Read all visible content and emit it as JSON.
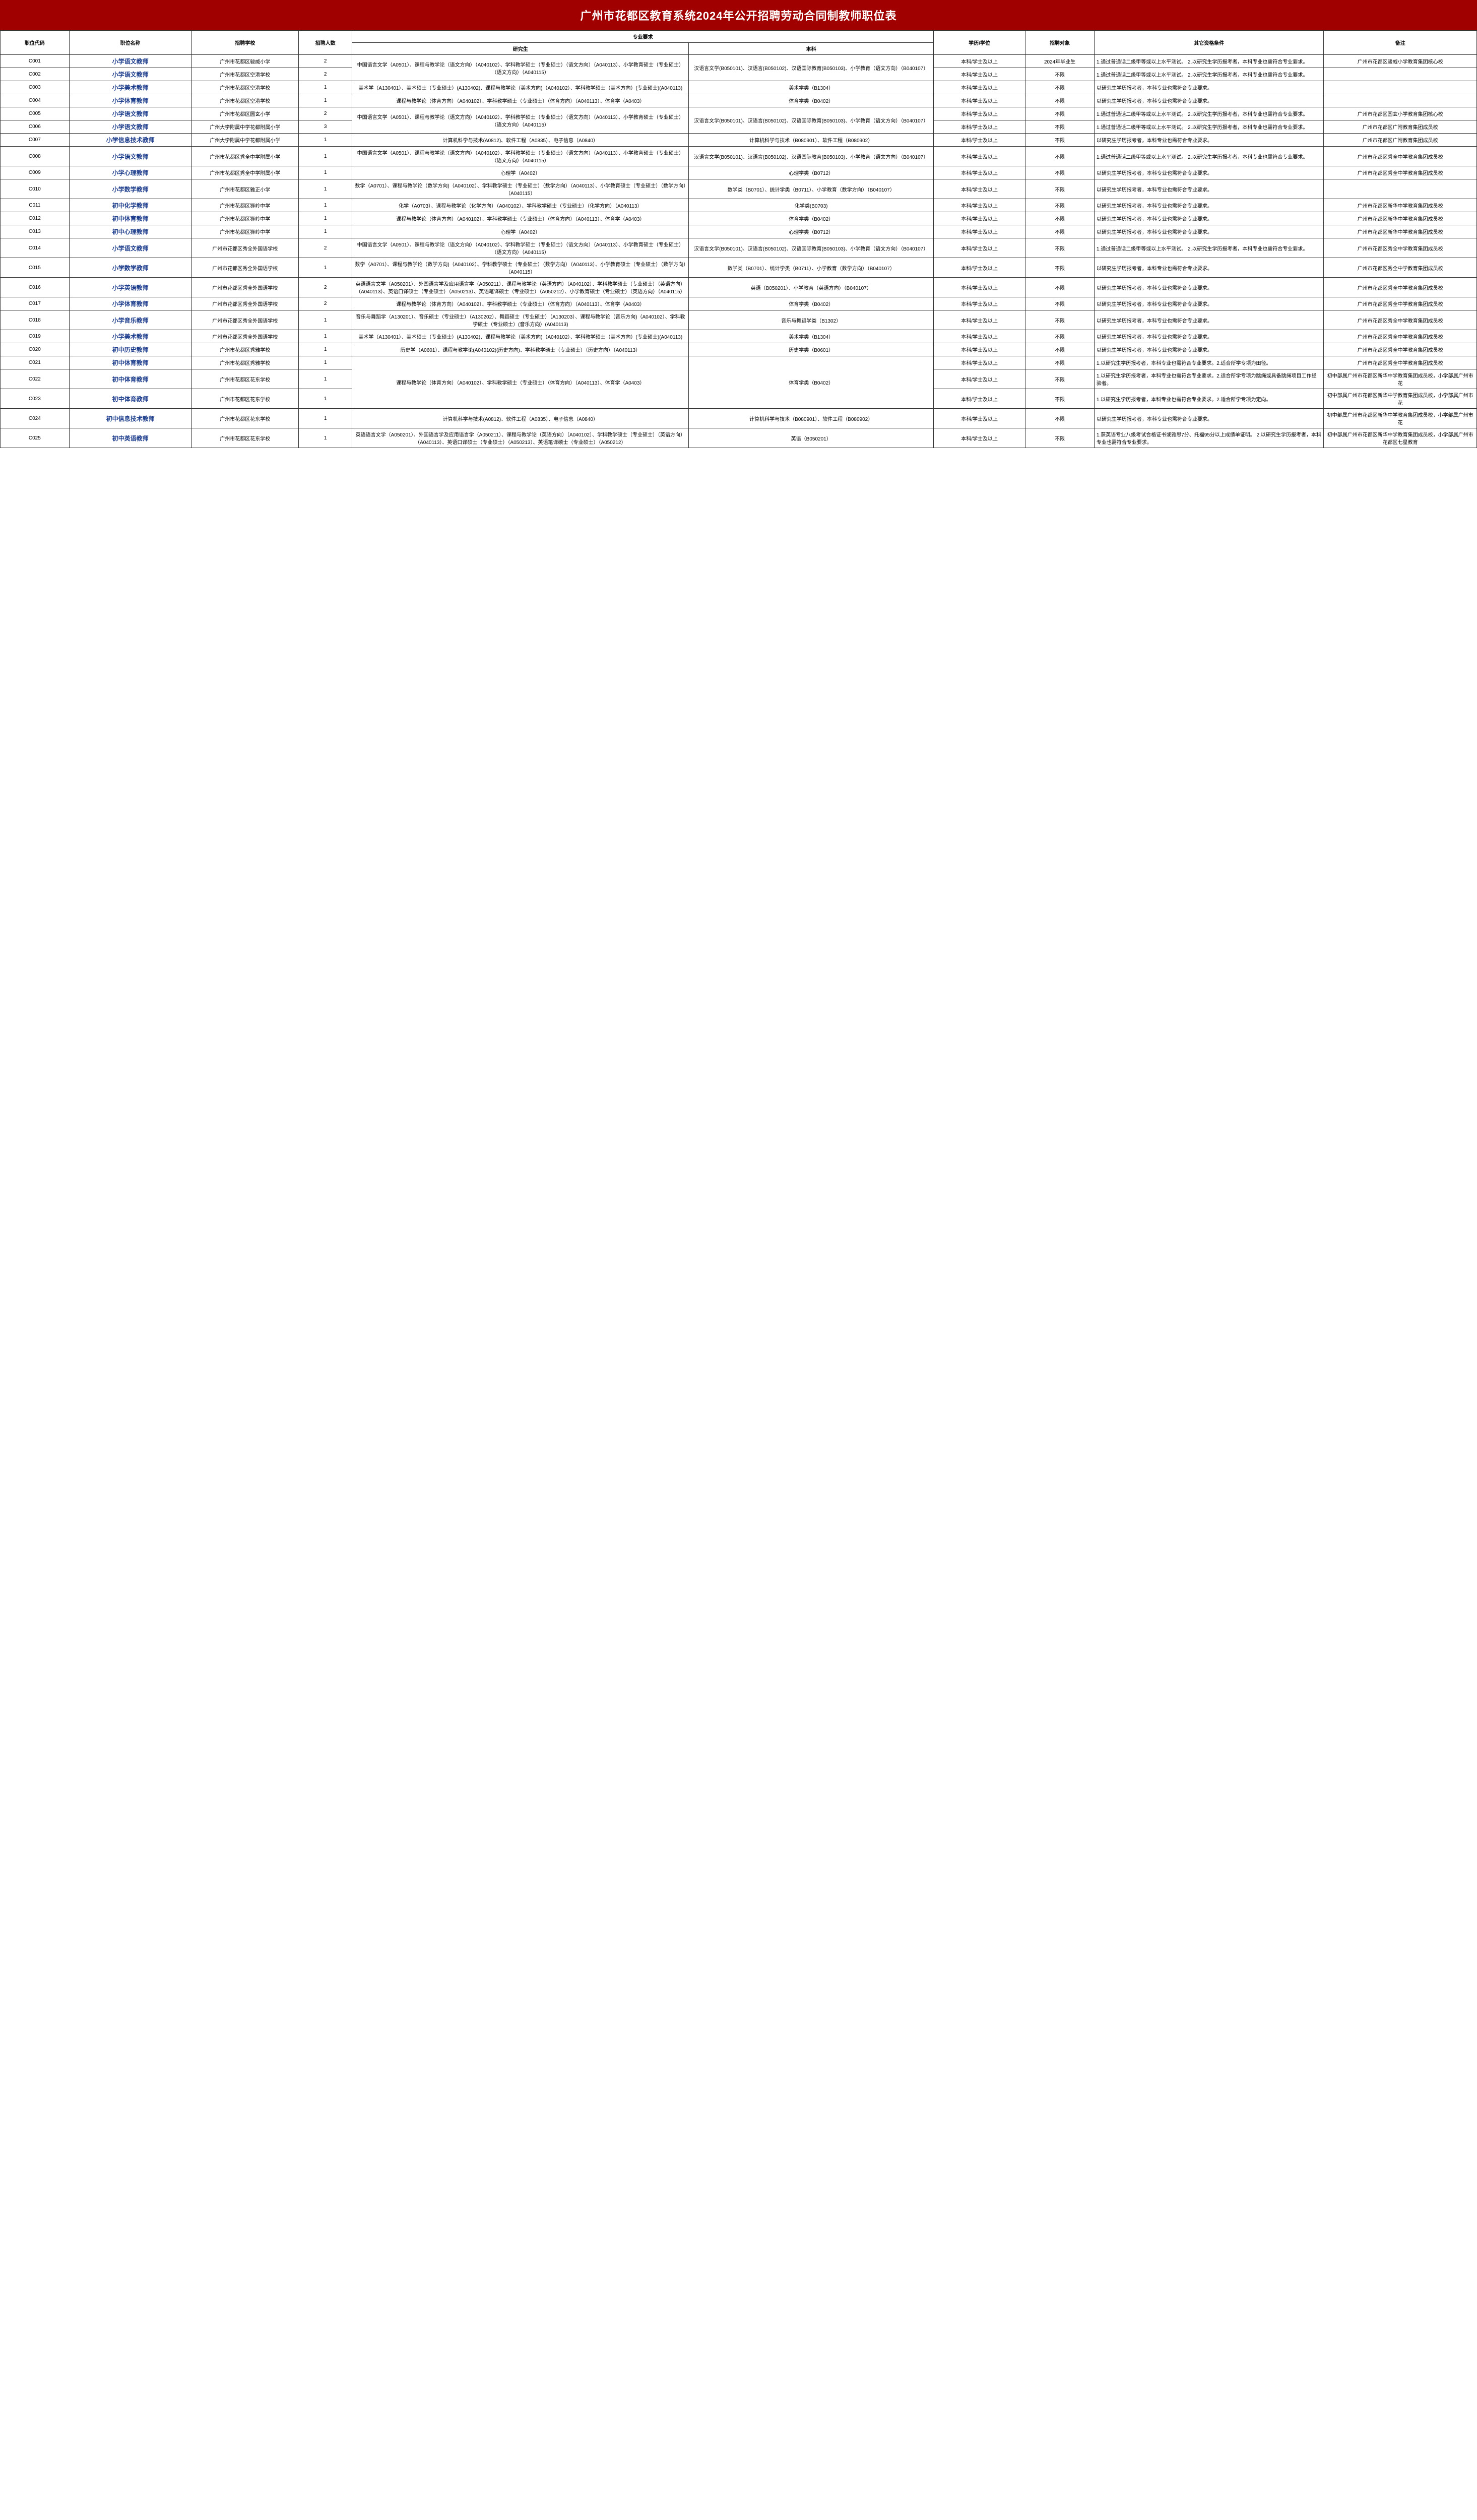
{
  "title": "广州市花都区教育系统2024年公开招聘劳动合同制教师职位表",
  "colors": {
    "title_bg": "#a00000",
    "title_fg": "#ffffff",
    "border": "#333333",
    "position_link": "#1a3a8a"
  },
  "headers": {
    "code": "职位代码",
    "name": "职位名称",
    "school": "招聘学校",
    "count": "招聘人数",
    "major_group": "专业要求",
    "grad": "研究生",
    "undergrad": "本科",
    "degree": "学历/学位",
    "target": "招聘对象",
    "other": "其它资格条件",
    "remark": "备注"
  },
  "shared": {
    "chinese_grad": "中国语言文学（A0501）、课程与教学论（语文方向）（A040102）、学科教学硕士（专业硕士）（语文方向）（A040113）、小学教育硕士（专业硕士）（语文方向）（A040115）",
    "chinese_under": "汉语言文学(B050101)、汉语言(B050102)、汉语国际教育(B050103)、小学教育（语文方向）（B040107）",
    "pe_grad": "课程与教学论（体育方向）（A040102）、学科教学硕士（专业硕士）（体育方向）（A040113）、体育学（A0403）",
    "pe_under": "体育学类（B0402）",
    "it_grad": "计算机科学与技术(A0812)、软件工程（A0835）、电子信息（A0840）",
    "it_under": "计算机科学与技术（B080901）、软件工程（B080902）",
    "math_grad": "数学（A0701）、课程与教学论（数学方向)（A040102）、学科教学硕士（专业硕士）（数学方向）（A040113）、小学教育硕士（专业硕士）（数学方向）（A040115）",
    "math_under": "数学类（B0701）、统计学类（B0711）、小学教育（数学方向）（B040107）",
    "art_grad": "美术学（A130401）、美术硕士（专业硕士）(A130402)、课程与教学论（美术方向)（A040102）、学科教学硕士（美术方向）(专业硕士)(A040113)",
    "art_under": "美术学类（B1304）",
    "psych_grad": "心理学（A0402）",
    "psych_under": "心理学类（B0712）",
    "q_chinese": "1.通过普通话二级甲等或以上水平测试。\n2.以研究生学历报考者，本科专业也需符合专业要求。",
    "q_grad": "以研究生学历报考者，本科专业也需符合专业要求。",
    "deg": "本科/学士及以上",
    "any": "不限"
  },
  "rows": [
    {
      "code": "C001",
      "name": "小学语文教师",
      "school": "广州市花都区骏威小学",
      "count": "2",
      "grad": "@chinese_grad",
      "under": "@chinese_under",
      "degree": "@deg",
      "target": "2024年毕业生",
      "other": "@q_chinese",
      "remark": "广州市花都区骏威小学教育集团核心校",
      "grad_span": 2,
      "under_span": 2
    },
    {
      "code": "C002",
      "name": "小学语文教师",
      "school": "广州市花都区空港学校",
      "count": "2",
      "degree": "@deg",
      "target": "@any",
      "other": "@q_chinese",
      "remark": ""
    },
    {
      "code": "C003",
      "name": "小学美术教师",
      "school": "广州市花都区空港学校",
      "count": "1",
      "grad": "@art_grad",
      "under": "@art_under",
      "degree": "@deg",
      "target": "@any",
      "other": "@q_grad",
      "remark": ""
    },
    {
      "code": "C004",
      "name": "小学体育教师",
      "school": "广州市花都区空港学校",
      "count": "1",
      "grad": "@pe_grad",
      "under": "@pe_under",
      "degree": "@deg",
      "target": "@any",
      "other": "@q_grad",
      "remark": ""
    },
    {
      "code": "C005",
      "name": "小学语文教师",
      "school": "广州市花都区圆玄小学",
      "count": "2",
      "grad": "@chinese_grad",
      "under": "@chinese_under",
      "degree": "@deg",
      "target": "@any",
      "other": "@q_chinese",
      "remark": "广州市花都区圆玄小学教育集团核心校",
      "grad_span": 2,
      "under_span": 2
    },
    {
      "code": "C006",
      "name": "小学语文教师",
      "school": "广州大学附属中学花都附属小学",
      "count": "3",
      "degree": "@deg",
      "target": "@any",
      "other": "@q_chinese",
      "remark": "广州市花都区广附教育集团成员校"
    },
    {
      "code": "C007",
      "name": "小学信息技术教师",
      "school": "广州大学附属中学花都附属小学",
      "count": "1",
      "grad": "@it_grad",
      "under": "@it_under",
      "degree": "@deg",
      "target": "@any",
      "other": "@q_grad",
      "remark": "广州市花都区广附教育集团成员校"
    },
    {
      "code": "C008",
      "name": "小学语文教师",
      "school": "广州市花都区秀全中学附属小学",
      "count": "1",
      "grad": "@chinese_grad",
      "under": "@chinese_under",
      "degree": "@deg",
      "target": "@any",
      "other": "@q_chinese",
      "remark": "广州市花都区秀全中学教育集团成员校"
    },
    {
      "code": "C009",
      "name": "小学心理教师",
      "school": "广州市花都区秀全中学附属小学",
      "count": "1",
      "grad": "@psych_grad",
      "under": "@psych_under",
      "degree": "@deg",
      "target": "@any",
      "other": "@q_grad",
      "remark": "广州市花都区秀全中学教育集团成员校"
    },
    {
      "code": "C010",
      "name": "小学数学教师",
      "school": "广州市花都区雅正小学",
      "count": "1",
      "grad": "@math_grad",
      "under": "@math_under",
      "degree": "@deg",
      "target": "@any",
      "other": "@q_grad",
      "remark": ""
    },
    {
      "code": "C011",
      "name": "初中化学教师",
      "school": "广州市花都区狮岭中学",
      "count": "1",
      "grad": "化学（A0703）、课程与教学论（化学方向）（A040102）、学科教学硕士（专业硕士）（化学方向）（A040113）",
      "under": "化学类(B0703)",
      "degree": "@deg",
      "target": "@any",
      "other": "@q_grad",
      "remark": "广州市花都区新华中学教育集团成员校"
    },
    {
      "code": "C012",
      "name": "初中体育教师",
      "school": "广州市花都区狮岭中学",
      "count": "1",
      "grad": "@pe_grad",
      "under": "@pe_under",
      "degree": "@deg",
      "target": "@any",
      "other": "@q_grad",
      "remark": "广州市花都区新华中学教育集团成员校"
    },
    {
      "code": "C013",
      "name": "初中心理教师",
      "school": "广州市花都区狮岭中学",
      "count": "1",
      "grad": "@psych_grad",
      "under": "@psych_under",
      "degree": "@deg",
      "target": "@any",
      "other": "@q_grad",
      "remark": "广州市花都区新华中学教育集团成员校"
    },
    {
      "code": "C014",
      "name": "小学语文教师",
      "school": "广州市花都区秀全外国语学校",
      "count": "2",
      "grad": "@chinese_grad",
      "under": "@chinese_under",
      "degree": "@deg",
      "target": "@any",
      "other": "@q_chinese",
      "remark": "广州市花都区秀全中学教育集团成员校"
    },
    {
      "code": "C015",
      "name": "小学数学教师",
      "school": "广州市花都区秀全外国语学校",
      "count": "1",
      "grad": "@math_grad",
      "under": "@math_under",
      "degree": "@deg",
      "target": "@any",
      "other": "@q_grad",
      "remark": "广州市花都区秀全中学教育集团成员校"
    },
    {
      "code": "C016",
      "name": "小学英语教师",
      "school": "广州市花都区秀全外国语学校",
      "count": "2",
      "grad": "英语语言文学（A050201）、外国语言学及应用语言学（A050211）、课程与教学论（英语方向）（A040102）、学科教学硕士（专业硕士）（英语方向）（A040113）、英语口译硕士（专业硕士）（A050213）、英语笔译硕士（专业硕士）（A050212）、小学教育硕士（专业硕士）（英语方向）（A040115）",
      "under": "英语（B050201）、小学教育（英语方向）（B040107）",
      "degree": "@deg",
      "target": "@any",
      "other": "@q_grad",
      "remark": "广州市花都区秀全中学教育集团成员校"
    },
    {
      "code": "C017",
      "name": "小学体育教师",
      "school": "广州市花都区秀全外国语学校",
      "count": "2",
      "grad": "@pe_grad",
      "under": "@pe_under",
      "degree": "@deg",
      "target": "@any",
      "other": "@q_grad",
      "remark": "广州市花都区秀全中学教育集团成员校"
    },
    {
      "code": "C018",
      "name": "小学音乐教师",
      "school": "广州市花都区秀全外国语学校",
      "count": "1",
      "grad": "音乐与舞蹈学（A130201）、音乐硕士（专业硕士）（A130202）、舞蹈硕士（专业硕士）（A130203）、课程与教学论（音乐方向)（A040102）、学科教学硕士（专业硕士）(音乐方向）(A040113)",
      "under": "音乐与舞蹈学类（B1302）",
      "degree": "@deg",
      "target": "@any",
      "other": "@q_grad",
      "remark": "广州市花都区秀全中学教育集团成员校"
    },
    {
      "code": "C019",
      "name": "小学美术教师",
      "school": "广州市花都区秀全外国语学校",
      "count": "1",
      "grad": "@art_grad",
      "under": "@art_under",
      "degree": "@deg",
      "target": "@any",
      "other": "@q_grad",
      "remark": "广州市花都区秀全中学教育集团成员校"
    },
    {
      "code": "C020",
      "name": "初中历史教师",
      "school": "广州市花都区秀雅学校",
      "count": "1",
      "grad": "历史学（A0601）、课程与教学论(A040102)(历史方向)、学科教学硕士（专业硕士）（历史方向）（A040113）",
      "under": "历史学类（B0601）",
      "degree": "@deg",
      "target": "@any",
      "other": "@q_grad",
      "remark": "广州市花都区秀全中学教育集团成员校"
    },
    {
      "code": "C021",
      "name": "初中体育教师",
      "school": "广州市花都区秀雅学校",
      "count": "1",
      "grad": "@pe_grad",
      "under": "@pe_under",
      "degree": "@deg",
      "target": "@any",
      "other": "1.以研究生学历报考者，本科专业也需符合专业要求。2.适合所学专项为田径。",
      "remark": "广州市花都区秀全中学教育集团成员校",
      "grad_span": 3,
      "under_span": 3
    },
    {
      "code": "C022",
      "name": "初中体育教师",
      "school": "广州市花都区花东学校",
      "count": "1",
      "degree": "@deg",
      "target": "@any",
      "other": "1.以研究生学历报考者，本科专业也需符合专业要求。2.适合所学专项为跳绳或具备跳绳项目工作经验者。",
      "remark": "初中部属广州市花都区新华中学教育集团成员校，小学部属广州市花"
    },
    {
      "code": "C023",
      "name": "初中体育教师",
      "school": "广州市花都区花东学校",
      "count": "1",
      "degree": "@deg",
      "target": "@any",
      "other": "1.以研究生学历报考者，本科专业也需符合专业要求。2.适合所学专项为定向。",
      "remark": "初中部属广州市花都区新华中学教育集团成员校，小学部属广州市花"
    },
    {
      "code": "C024",
      "name": "初中信息技术教师",
      "school": "广州市花都区花东学校",
      "count": "1",
      "grad": "@it_grad",
      "under": "@it_under",
      "degree": "@deg",
      "target": "@any",
      "other": "@q_grad",
      "remark": "初中部属广州市花都区新华中学教育集团成员校，小学部属广州市花"
    },
    {
      "code": "C025",
      "name": "初中英语教师",
      "school": "广州市花都区花东学校",
      "count": "1",
      "grad": "英语语言文学（A050201）、外国语言学及应用语言学（A050211）、课程与教学论（英语方向）（A040102）、学科教学硕士（专业硕士）（英语方向）（A040113）、英语口译硕士（专业硕士）（A050213）、英语笔译硕士（专业硕士）（A050212）",
      "under": "英语（B050201）",
      "degree": "@deg",
      "target": "@any",
      "other": "1.获英语专业八级考试合格证书或雅思7分、托福95分以上成绩单证明。\n2.以研究生学历报考者，本科专业也需符合专业要求。",
      "remark": "初中部属广州市花都区新华中学教育集团成员校，小学部属广州市花都区七星教育"
    }
  ]
}
